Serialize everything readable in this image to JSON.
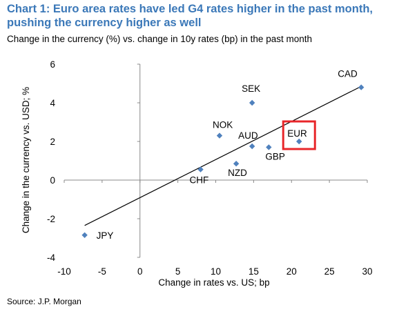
{
  "title": "Chart 1: Euro area rates have led G4 rates higher in the past month, pushing the currency higher as well",
  "subtitle": "Change in the currency (%) vs. change in 10y rates (bp) in the past month",
  "source": "Source: J.P. Morgan",
  "colors": {
    "title": "#3b78b8",
    "marker": "#4f81bd",
    "highlight": "#e8262a"
  },
  "chart_data": {
    "type": "scatter",
    "xlabel": "Change in rates vs. US; bp",
    "ylabel": "Change in the currency vs. USD; %",
    "xlim": [
      -10,
      30
    ],
    "ylim": [
      -4,
      6
    ],
    "xticks": [
      -10,
      -5,
      0,
      5,
      10,
      15,
      20,
      25,
      30
    ],
    "yticks": [
      -4,
      -2,
      0,
      2,
      4,
      6
    ],
    "grid": false,
    "points": [
      {
        "label": "CAD",
        "x": 29.2,
        "y": 4.8
      },
      {
        "label": "SEK",
        "x": 14.8,
        "y": 4.0
      },
      {
        "label": "NOK",
        "x": 10.5,
        "y": 2.3
      },
      {
        "label": "AUD",
        "x": 14.8,
        "y": 1.75
      },
      {
        "label": "EUR",
        "x": 21.0,
        "y": 2.0
      },
      {
        "label": "GBP",
        "x": 17.0,
        "y": 1.7
      },
      {
        "label": "NZD",
        "x": 12.7,
        "y": 0.85
      },
      {
        "label": "CHF",
        "x": 8.0,
        "y": 0.55
      },
      {
        "label": "JPY",
        "x": -7.3,
        "y": -2.85
      }
    ],
    "trendline": {
      "x": [
        -7.3,
        29.2
      ],
      "y": [
        -2.35,
        4.85
      ]
    },
    "highlight": "EUR"
  }
}
